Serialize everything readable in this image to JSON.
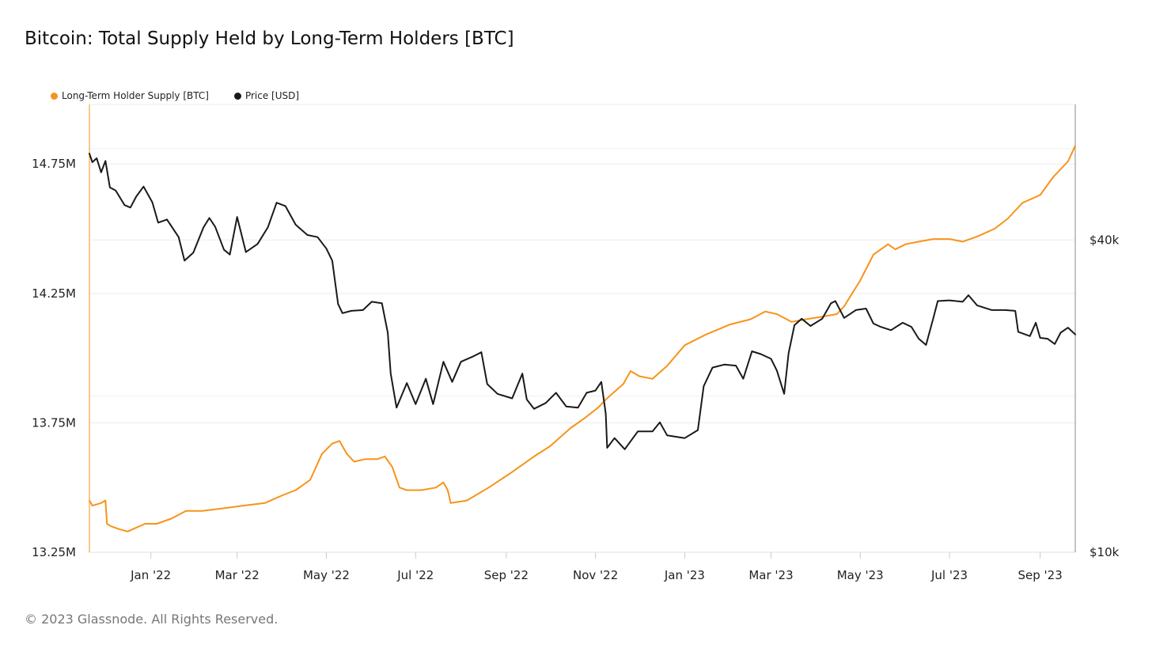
{
  "chart_data": {
    "type": "line",
    "title": "Bitcoin: Total Supply Held by Long-Term Holders [BTC]",
    "x_range": [
      "2021-11-20",
      "2023-09-25"
    ],
    "x_ticks": [
      {
        "label": "Jan '22",
        "date": "2022-01-01"
      },
      {
        "label": "Mar '22",
        "date": "2022-03-01"
      },
      {
        "label": "May '22",
        "date": "2022-05-01"
      },
      {
        "label": "Jul '22",
        "date": "2022-07-01"
      },
      {
        "label": "Sep '22",
        "date": "2022-09-01"
      },
      {
        "label": "Nov '22",
        "date": "2022-11-01"
      },
      {
        "label": "Jan '23",
        "date": "2023-01-01"
      },
      {
        "label": "Mar '23",
        "date": "2023-03-01"
      },
      {
        "label": "May '23",
        "date": "2023-05-01"
      },
      {
        "label": "Jul '23",
        "date": "2023-07-01"
      },
      {
        "label": "Sep '23",
        "date": "2023-09-01"
      }
    ],
    "y_left": {
      "label": "Long-Term Holder Supply [BTC]",
      "min": 13.25,
      "max": 14.98,
      "unit": "M",
      "ticks": [
        {
          "value": 13.25,
          "label": "13.25M"
        },
        {
          "value": 13.75,
          "label": "13.75M"
        },
        {
          "value": 14.25,
          "label": "14.25M"
        },
        {
          "value": 14.75,
          "label": "14.75M"
        }
      ]
    },
    "y_right": {
      "label": "Price [USD]",
      "scale": "log",
      "min": 10000,
      "max": 73000,
      "ticks": [
        {
          "value": 10000,
          "label": "$10k"
        },
        {
          "value": 40000,
          "label": "$40k"
        }
      ]
    },
    "series": [
      {
        "name": "Long-Term Holder Supply [BTC]",
        "color": "#f7931a",
        "axis": "left",
        "points": [
          [
            "2021-11-20",
            13.45
          ],
          [
            "2021-11-22",
            13.43
          ],
          [
            "2021-11-28",
            13.44
          ],
          [
            "2021-12-01",
            13.45
          ],
          [
            "2021-12-02",
            13.36
          ],
          [
            "2021-12-05",
            13.35
          ],
          [
            "2021-12-10",
            13.34
          ],
          [
            "2021-12-16",
            13.33
          ],
          [
            "2021-12-20",
            13.34
          ],
          [
            "2021-12-28",
            13.36
          ],
          [
            "2022-01-05",
            13.36
          ],
          [
            "2022-01-15",
            13.38
          ],
          [
            "2022-01-25",
            13.41
          ],
          [
            "2022-02-05",
            13.41
          ],
          [
            "2022-02-20",
            13.42
          ],
          [
            "2022-03-05",
            13.43
          ],
          [
            "2022-03-20",
            13.44
          ],
          [
            "2022-04-01",
            13.47
          ],
          [
            "2022-04-10",
            13.49
          ],
          [
            "2022-04-20",
            13.53
          ],
          [
            "2022-04-28",
            13.63
          ],
          [
            "2022-05-05",
            13.67
          ],
          [
            "2022-05-10",
            13.68
          ],
          [
            "2022-05-15",
            13.63
          ],
          [
            "2022-05-20",
            13.6
          ],
          [
            "2022-05-28",
            13.61
          ],
          [
            "2022-06-05",
            13.61
          ],
          [
            "2022-06-10",
            13.62
          ],
          [
            "2022-06-15",
            13.58
          ],
          [
            "2022-06-20",
            13.5
          ],
          [
            "2022-06-25",
            13.49
          ],
          [
            "2022-07-05",
            13.49
          ],
          [
            "2022-07-15",
            13.5
          ],
          [
            "2022-07-20",
            13.52
          ],
          [
            "2022-07-23",
            13.49
          ],
          [
            "2022-07-25",
            13.44
          ],
          [
            "2022-08-05",
            13.45
          ],
          [
            "2022-08-20",
            13.5
          ],
          [
            "2022-09-05",
            13.56
          ],
          [
            "2022-09-20",
            13.62
          ],
          [
            "2022-10-01",
            13.66
          ],
          [
            "2022-10-15",
            13.73
          ],
          [
            "2022-10-25",
            13.77
          ],
          [
            "2022-11-03",
            13.81
          ],
          [
            "2022-11-08",
            13.84
          ],
          [
            "2022-11-12",
            13.86
          ],
          [
            "2022-11-20",
            13.9
          ],
          [
            "2022-11-25",
            13.95
          ],
          [
            "2022-12-01",
            13.93
          ],
          [
            "2022-12-10",
            13.92
          ],
          [
            "2022-12-20",
            13.97
          ],
          [
            "2023-01-01",
            14.05
          ],
          [
            "2023-01-15",
            14.09
          ],
          [
            "2023-02-01",
            14.13
          ],
          [
            "2023-02-15",
            14.15
          ],
          [
            "2023-02-25",
            14.18
          ],
          [
            "2023-03-05",
            14.17
          ],
          [
            "2023-03-15",
            14.14
          ],
          [
            "2023-03-25",
            14.15
          ],
          [
            "2023-04-05",
            14.16
          ],
          [
            "2023-04-15",
            14.17
          ],
          [
            "2023-04-20",
            14.2
          ],
          [
            "2023-05-01",
            14.3
          ],
          [
            "2023-05-10",
            14.4
          ],
          [
            "2023-05-20",
            14.44
          ],
          [
            "2023-05-25",
            14.42
          ],
          [
            "2023-06-01",
            14.44
          ],
          [
            "2023-06-10",
            14.45
          ],
          [
            "2023-06-20",
            14.46
          ],
          [
            "2023-07-01",
            14.46
          ],
          [
            "2023-07-10",
            14.45
          ],
          [
            "2023-07-20",
            14.47
          ],
          [
            "2023-08-01",
            14.5
          ],
          [
            "2023-08-10",
            14.54
          ],
          [
            "2023-08-20",
            14.6
          ],
          [
            "2023-09-01",
            14.63
          ],
          [
            "2023-09-10",
            14.7
          ],
          [
            "2023-09-20",
            14.76
          ],
          [
            "2023-09-25",
            14.82
          ]
        ]
      },
      {
        "name": "Price [USD]",
        "color": "#1a1a1a",
        "axis": "right",
        "points": [
          [
            "2021-11-20",
            58700
          ],
          [
            "2021-11-22",
            56500
          ],
          [
            "2021-11-25",
            57500
          ],
          [
            "2021-11-28",
            54000
          ],
          [
            "2021-12-01",
            56800
          ],
          [
            "2021-12-04",
            50500
          ],
          [
            "2021-12-08",
            49800
          ],
          [
            "2021-12-14",
            46700
          ],
          [
            "2021-12-18",
            46200
          ],
          [
            "2021-12-22",
            48500
          ],
          [
            "2021-12-27",
            50700
          ],
          [
            "2022-01-02",
            47300
          ],
          [
            "2022-01-06",
            43200
          ],
          [
            "2022-01-12",
            43800
          ],
          [
            "2022-01-20",
            40500
          ],
          [
            "2022-01-24",
            36500
          ],
          [
            "2022-01-30",
            37800
          ],
          [
            "2022-02-06",
            42300
          ],
          [
            "2022-02-10",
            44100
          ],
          [
            "2022-02-14",
            42400
          ],
          [
            "2022-02-20",
            38300
          ],
          [
            "2022-02-24",
            37500
          ],
          [
            "2022-03-01",
            44300
          ],
          [
            "2022-03-07",
            37900
          ],
          [
            "2022-03-15",
            39300
          ],
          [
            "2022-03-22",
            42300
          ],
          [
            "2022-03-28",
            47200
          ],
          [
            "2022-04-03",
            46500
          ],
          [
            "2022-04-10",
            42800
          ],
          [
            "2022-04-18",
            40900
          ],
          [
            "2022-04-25",
            40500
          ],
          [
            "2022-05-01",
            38500
          ],
          [
            "2022-05-05",
            36500
          ],
          [
            "2022-05-09",
            30100
          ],
          [
            "2022-05-12",
            28900
          ],
          [
            "2022-05-18",
            29200
          ],
          [
            "2022-05-26",
            29300
          ],
          [
            "2022-06-01",
            30400
          ],
          [
            "2022-06-08",
            30200
          ],
          [
            "2022-06-12",
            26500
          ],
          [
            "2022-06-14",
            22100
          ],
          [
            "2022-06-18",
            19000
          ],
          [
            "2022-06-25",
            21200
          ],
          [
            "2022-07-01",
            19300
          ],
          [
            "2022-07-08",
            21600
          ],
          [
            "2022-07-13",
            19300
          ],
          [
            "2022-07-20",
            23300
          ],
          [
            "2022-07-26",
            21300
          ],
          [
            "2022-08-01",
            23300
          ],
          [
            "2022-08-10",
            23900
          ],
          [
            "2022-08-15",
            24300
          ],
          [
            "2022-08-19",
            21100
          ],
          [
            "2022-08-26",
            20200
          ],
          [
            "2022-09-05",
            19800
          ],
          [
            "2022-09-12",
            22100
          ],
          [
            "2022-09-15",
            19700
          ],
          [
            "2022-09-20",
            18900
          ],
          [
            "2022-09-28",
            19400
          ],
          [
            "2022-10-05",
            20300
          ],
          [
            "2022-10-12",
            19100
          ],
          [
            "2022-10-20",
            19000
          ],
          [
            "2022-10-26",
            20300
          ],
          [
            "2022-11-01",
            20500
          ],
          [
            "2022-11-05",
            21300
          ],
          [
            "2022-11-08",
            18500
          ],
          [
            "2022-11-09",
            15900
          ],
          [
            "2022-11-14",
            16600
          ],
          [
            "2022-11-21",
            15800
          ],
          [
            "2022-11-30",
            17100
          ],
          [
            "2022-12-10",
            17100
          ],
          [
            "2022-12-15",
            17800
          ],
          [
            "2022-12-20",
            16800
          ],
          [
            "2023-01-01",
            16600
          ],
          [
            "2023-01-10",
            17200
          ],
          [
            "2023-01-14",
            20900
          ],
          [
            "2023-01-20",
            22700
          ],
          [
            "2023-01-28",
            23000
          ],
          [
            "2023-02-05",
            22900
          ],
          [
            "2023-02-10",
            21600
          ],
          [
            "2023-02-16",
            24400
          ],
          [
            "2023-02-22",
            24100
          ],
          [
            "2023-03-01",
            23600
          ],
          [
            "2023-03-05",
            22400
          ],
          [
            "2023-03-10",
            20200
          ],
          [
            "2023-03-13",
            24200
          ],
          [
            "2023-03-17",
            27400
          ],
          [
            "2023-03-22",
            28200
          ],
          [
            "2023-03-28",
            27300
          ],
          [
            "2023-04-05",
            28200
          ],
          [
            "2023-04-11",
            30200
          ],
          [
            "2023-04-14",
            30500
          ],
          [
            "2023-04-20",
            28300
          ],
          [
            "2023-04-28",
            29300
          ],
          [
            "2023-05-05",
            29500
          ],
          [
            "2023-05-10",
            27600
          ],
          [
            "2023-05-15",
            27200
          ],
          [
            "2023-05-22",
            26800
          ],
          [
            "2023-05-30",
            27700
          ],
          [
            "2023-06-05",
            27200
          ],
          [
            "2023-06-10",
            25800
          ],
          [
            "2023-06-15",
            25100
          ],
          [
            "2023-06-20",
            28300
          ],
          [
            "2023-06-23",
            30500
          ],
          [
            "2023-07-01",
            30600
          ],
          [
            "2023-07-10",
            30400
          ],
          [
            "2023-07-14",
            31300
          ],
          [
            "2023-07-20",
            29900
          ],
          [
            "2023-07-30",
            29300
          ],
          [
            "2023-08-08",
            29300
          ],
          [
            "2023-08-15",
            29200
          ],
          [
            "2023-08-17",
            26600
          ],
          [
            "2023-08-25",
            26100
          ],
          [
            "2023-08-29",
            27700
          ],
          [
            "2023-09-01",
            25900
          ],
          [
            "2023-09-06",
            25800
          ],
          [
            "2023-09-11",
            25200
          ],
          [
            "2023-09-15",
            26500
          ],
          [
            "2023-09-20",
            27100
          ],
          [
            "2023-09-25",
            26300
          ]
        ]
      }
    ]
  },
  "footer": "© 2023 Glassnode. All Rights Reserved."
}
